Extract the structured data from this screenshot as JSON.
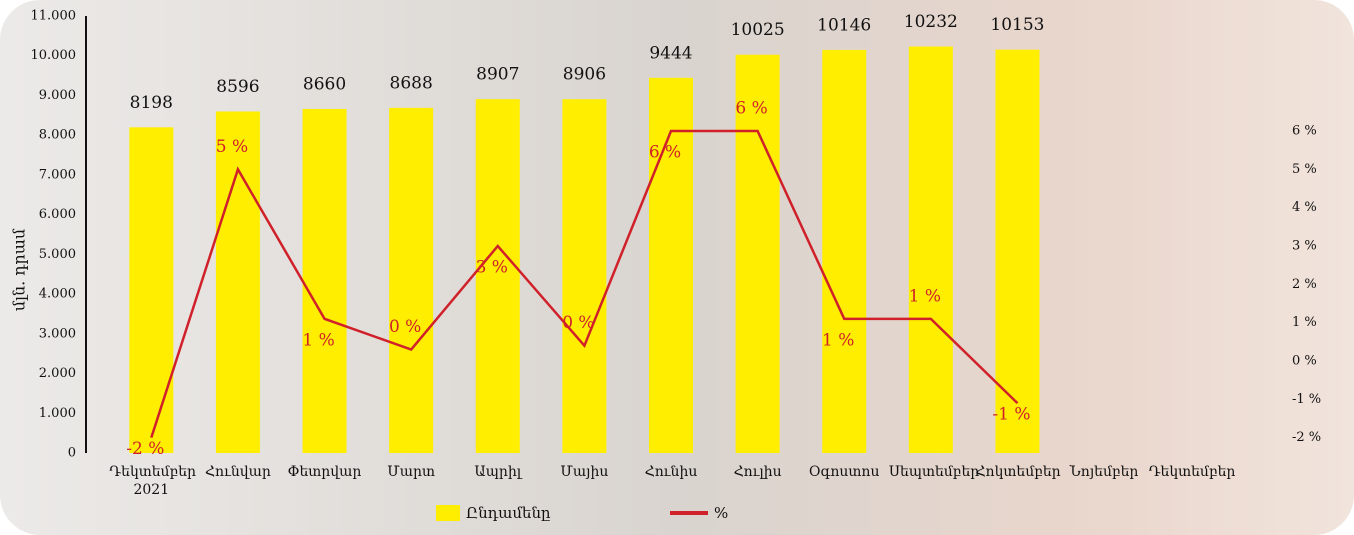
{
  "chart_data": {
    "type": "bar",
    "y_label": "մլն. դրամ",
    "categories": [
      "Դեկտեմբեր 2021",
      "Հունվար",
      "Փետրվար",
      "Մարտ",
      "Ապրիլ",
      "Մայիս",
      "Հունիս",
      "Հուլիս",
      "Օգոստոս",
      "Սեպտեմբեր",
      "Հոկտեմբեր",
      "Նոյեմբեր",
      "Դեկտեմբեր"
    ],
    "series": [
      {
        "name": "Ընդամենը",
        "type": "bar",
        "color": "#ffee00",
        "values": [
          8198,
          8596,
          8660,
          8688,
          8907,
          8906,
          9444,
          10025,
          10146,
          10232,
          10153,
          null,
          null
        ]
      },
      {
        "name": "%",
        "type": "line",
        "axis": "y2",
        "color": "#d0212a",
        "values": [
          -2,
          5,
          1.1,
          0.3,
          3,
          0.4,
          6,
          6,
          1.1,
          1.1,
          -1.1,
          null,
          null
        ],
        "value_labels": [
          "-2 %",
          "5 %",
          "1 %",
          "0 %",
          "3 %",
          "0 %",
          "6 %",
          "6 %",
          "1 %",
          "1 %",
          "-1 %",
          null,
          null
        ]
      }
    ],
    "ylim": [
      0,
      11000
    ],
    "yticks": [
      0,
      {
        "value": 1000,
        "label": "1.000"
      },
      {
        "value": 2000,
        "label": "2.000"
      },
      {
        "value": 3000,
        "label": "3.000"
      },
      {
        "value": 4000,
        "label": "4.000"
      },
      {
        "value": 5000,
        "label": "5.000"
      },
      {
        "value": 6000,
        "label": "6.000"
      },
      {
        "value": 7000,
        "label": "7.000"
      },
      {
        "value": 8000,
        "label": "8.000"
      },
      {
        "value": 9000,
        "label": "9.000"
      },
      {
        "value": 10000,
        "label": "10.000"
      },
      {
        "value": 11000,
        "label": "11.000"
      }
    ],
    "y2lim": [
      -2.4,
      9
    ],
    "y2ticks": [
      {
        "value": -2,
        "label": "-2 %"
      },
      {
        "value": -1,
        "label": "-1 %"
      },
      {
        "value": 0,
        "label": "0 %"
      },
      {
        "value": 1,
        "label": "1 %"
      },
      {
        "value": 2,
        "label": "2 %"
      },
      {
        "value": 3,
        "label": "3 %"
      },
      {
        "value": 4,
        "label": "4 %"
      },
      {
        "value": 5,
        "label": "5 %"
      },
      {
        "value": 6,
        "label": "6 %"
      }
    ],
    "legend": "bottom"
  }
}
